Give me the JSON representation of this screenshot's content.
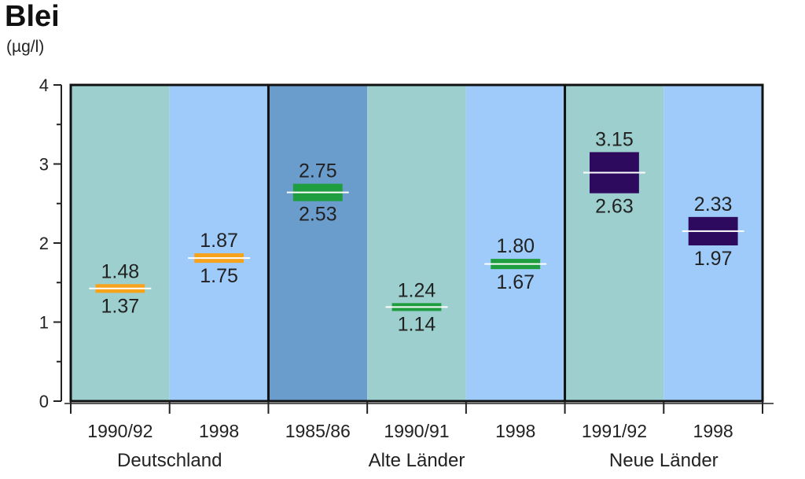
{
  "title": "Blei",
  "unit": "(µg/l)",
  "chart_data": {
    "type": "range-bar",
    "ylim": [
      0,
      4
    ],
    "y_ticks": [
      "0",
      "1",
      "2",
      "3",
      "4"
    ],
    "groups": [
      {
        "label": "Deutschland",
        "categories": [
          "1990/92",
          "1998"
        ]
      },
      {
        "label": "Alte Länder",
        "categories": [
          "1985/86",
          "1990/91",
          "1998"
        ]
      },
      {
        "label": "Neue Länder",
        "categories": [
          "1991/92",
          "1998"
        ]
      }
    ],
    "bars": [
      {
        "category": "1990/92",
        "group": "Deutschland",
        "low": 1.37,
        "high": 1.48,
        "low_label": "1.37",
        "high_label": "1.48",
        "color": "#f7a21b",
        "bg": "#9ecfcf"
      },
      {
        "category": "1998",
        "group": "Deutschland",
        "low": 1.75,
        "high": 1.87,
        "low_label": "1.75",
        "high_label": "1.87",
        "color": "#f7a21b",
        "bg": "#9ecbfa"
      },
      {
        "category": "1985/86",
        "group": "Alte Länder",
        "low": 2.53,
        "high": 2.75,
        "low_label": "2.53",
        "high_label": "2.75",
        "color": "#1f9e3f",
        "bg": "#6a9ccc"
      },
      {
        "category": "1990/91",
        "group": "Alte Länder",
        "low": 1.14,
        "high": 1.24,
        "low_label": "1.14",
        "high_label": "1.24",
        "color": "#1f9e3f",
        "bg": "#9ecfcf"
      },
      {
        "category": "1998",
        "group": "Alte Länder",
        "low": 1.67,
        "high": 1.8,
        "low_label": "1.67",
        "high_label": "1.80",
        "color": "#1f9e3f",
        "bg": "#9ecbfa"
      },
      {
        "category": "1991/92",
        "group": "Neue Länder",
        "low": 2.63,
        "high": 3.15,
        "low_label": "2.63",
        "high_label": "3.15",
        "color": "#2e0a5e",
        "bg": "#9ecfcf"
      },
      {
        "category": "1998",
        "group": "Neue Länder",
        "low": 1.97,
        "high": 2.33,
        "low_label": "1.97",
        "high_label": "2.33",
        "color": "#2e0a5e",
        "bg": "#9ecbfa"
      }
    ]
  }
}
